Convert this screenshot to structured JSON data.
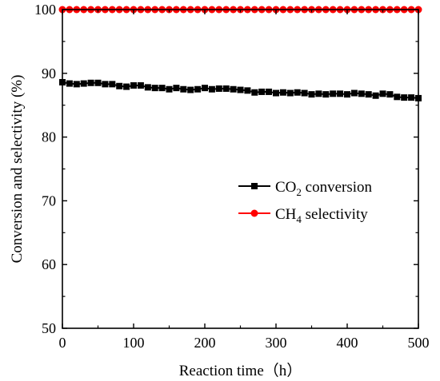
{
  "chart_data": {
    "type": "line",
    "title": "",
    "xlabel": "Reaction time（h）",
    "ylabel": "Conversion and selectivity (%)",
    "xlim": [
      0,
      500
    ],
    "ylim": [
      50,
      100
    ],
    "xticks": [
      0,
      100,
      200,
      300,
      400,
      500
    ],
    "yticks": [
      50,
      60,
      70,
      80,
      90,
      100
    ],
    "grid": false,
    "legend_position": "center-right",
    "series": [
      {
        "name": "CO2 conversion",
        "legend": {
          "base": "CO",
          "sub": "2",
          "rest": " conversion"
        },
        "color": "#000000",
        "marker": "square",
        "x": [
          0,
          10,
          20,
          30,
          40,
          50,
          60,
          70,
          80,
          90,
          100,
          110,
          120,
          130,
          140,
          150,
          160,
          170,
          180,
          190,
          200,
          210,
          220,
          230,
          240,
          250,
          260,
          270,
          280,
          290,
          300,
          310,
          320,
          330,
          340,
          350,
          360,
          370,
          380,
          390,
          400,
          410,
          420,
          430,
          440,
          450,
          460,
          470,
          480,
          490,
          500
        ],
        "y": [
          88.6,
          88.4,
          88.3,
          88.4,
          88.5,
          88.5,
          88.3,
          88.3,
          88.0,
          87.9,
          88.1,
          88.1,
          87.8,
          87.7,
          87.7,
          87.5,
          87.7,
          87.5,
          87.4,
          87.5,
          87.7,
          87.5,
          87.6,
          87.6,
          87.5,
          87.4,
          87.3,
          87.0,
          87.1,
          87.1,
          86.9,
          87.0,
          86.9,
          87.0,
          86.9,
          86.7,
          86.8,
          86.7,
          86.8,
          86.8,
          86.7,
          86.9,
          86.8,
          86.7,
          86.5,
          86.8,
          86.7,
          86.3,
          86.2,
          86.2,
          86.1
        ]
      },
      {
        "name": "CH4 selectivity",
        "legend": {
          "base": "CH",
          "sub": "4",
          "rest": " selectivity"
        },
        "color": "#ff0000",
        "marker": "circle",
        "x": [
          0,
          10,
          20,
          30,
          40,
          50,
          60,
          70,
          80,
          90,
          100,
          110,
          120,
          130,
          140,
          150,
          160,
          170,
          180,
          190,
          200,
          210,
          220,
          230,
          240,
          250,
          260,
          270,
          280,
          290,
          300,
          310,
          320,
          330,
          340,
          350,
          360,
          370,
          380,
          390,
          400,
          410,
          420,
          430,
          440,
          450,
          460,
          470,
          480,
          490,
          500
        ],
        "y": [
          100,
          100,
          100,
          100,
          100,
          100,
          100,
          100,
          100,
          100,
          100,
          100,
          100,
          100,
          100,
          100,
          100,
          100,
          100,
          100,
          100,
          100,
          100,
          100,
          100,
          100,
          100,
          100,
          100,
          100,
          100,
          100,
          100,
          100,
          100,
          100,
          100,
          100,
          100,
          100,
          100,
          100,
          100,
          100,
          100,
          100,
          100,
          100,
          100,
          100,
          100
        ]
      }
    ]
  }
}
